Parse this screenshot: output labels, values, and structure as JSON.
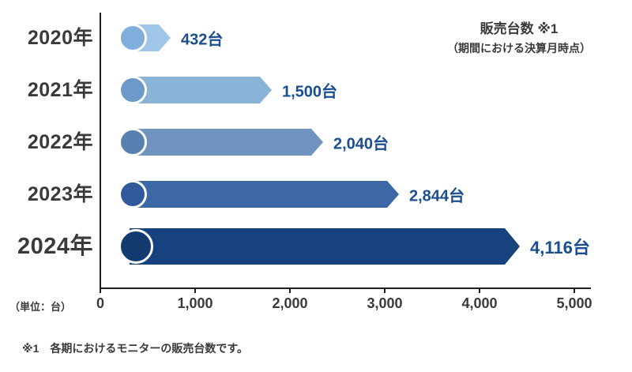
{
  "chart_data": {
    "type": "bar",
    "orientation": "horizontal",
    "title": "販売台数 ※1",
    "subtitle": "（期間における決算月時点）",
    "unit_label": "（単位：台）",
    "footnote": "※1　各期におけるモニターの販売台数です。",
    "categories": [
      "2020年",
      "2021年",
      "2022年",
      "2023年",
      "2024年"
    ],
    "values": [
      432,
      1500,
      2040,
      2844,
      4116
    ],
    "value_labels": [
      "432台",
      "1,500台",
      "2,040台",
      "2,844台",
      "4,116台"
    ],
    "xlim": [
      0,
      5000
    ],
    "x_ticks": [
      "0",
      "1,000",
      "2,000",
      "3,000",
      "4,000",
      "5,000"
    ],
    "bar_colors": [
      "#9fc6e6",
      "#8ab3d8",
      "#7093bf",
      "#3c68a6",
      "#16437d"
    ],
    "circle_colors": [
      "#7fafda",
      "#6b9ac9",
      "#5a80b0",
      "#2f5b9c",
      "#123a70"
    ],
    "value_label_color": "#1a4e8e",
    "axis_color": "#1f1f1f",
    "text_color": "#3a3a3a",
    "legend": "none",
    "grid": "off"
  }
}
